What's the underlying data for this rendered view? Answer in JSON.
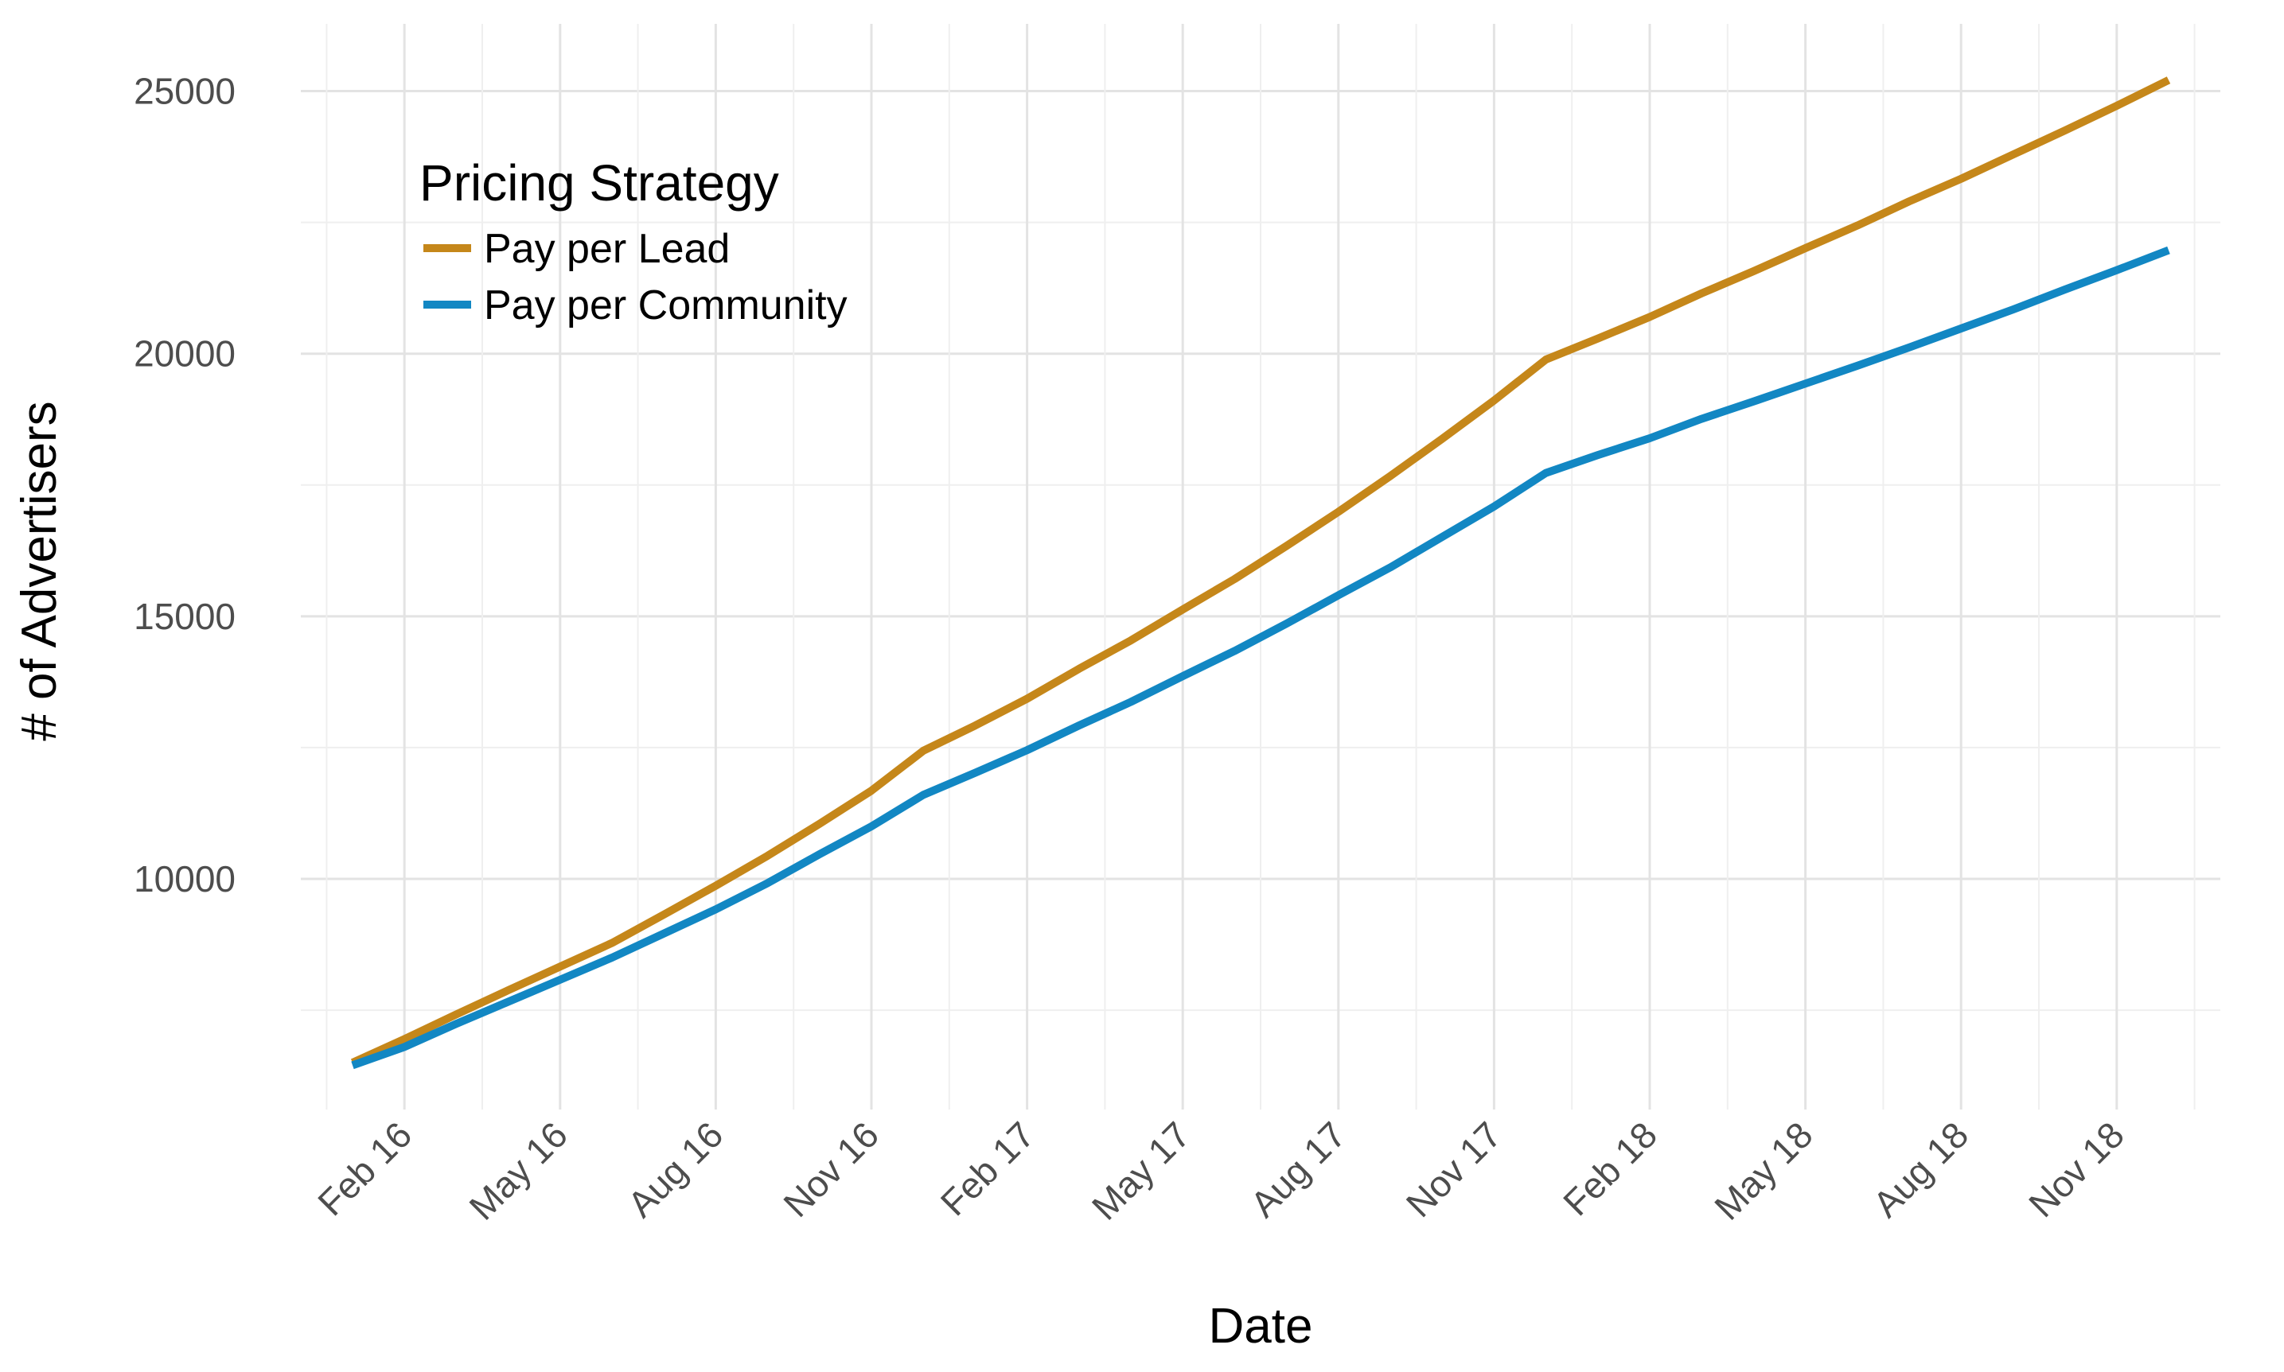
{
  "chart_data": {
    "type": "line",
    "xlabel": "Date",
    "ylabel": "# of Advertisers",
    "ylim": [
      6000,
      26000
    ],
    "y_ticks": [
      10000,
      15000,
      20000,
      25000
    ],
    "y_tick_labels": [
      "10000",
      "15000",
      "20000",
      "25000"
    ],
    "x_tick_labels": [
      "Feb 16",
      "May 16",
      "Aug 16",
      "Nov 16",
      "Feb 17",
      "May 17",
      "Aug 17",
      "Nov 17",
      "Feb 18",
      "May 18",
      "Aug 18",
      "Nov 18"
    ],
    "x": [
      "2016-01",
      "2016-02",
      "2016-03",
      "2016-04",
      "2016-05",
      "2016-06",
      "2016-07",
      "2016-08",
      "2016-09",
      "2016-10",
      "2016-11",
      "2016-12",
      "2017-01",
      "2017-02",
      "2017-03",
      "2017-04",
      "2017-05",
      "2017-06",
      "2017-07",
      "2017-08",
      "2017-09",
      "2017-10",
      "2017-11",
      "2017-12",
      "2018-01",
      "2018-02",
      "2018-03",
      "2018-04",
      "2018-05",
      "2018-06",
      "2018-07",
      "2018-08",
      "2018-09",
      "2018-10",
      "2018-11",
      "2018-12"
    ],
    "grid": true,
    "legend": {
      "title": "Pricing Strategy",
      "position": "top-left"
    },
    "series": [
      {
        "name": "Pay per Lead",
        "color": "#C5871A",
        "values": [
          6500,
          6950,
          7420,
          7880,
          8330,
          8780,
          9320,
          9870,
          10440,
          11050,
          11680,
          12440,
          12920,
          13430,
          14000,
          14540,
          15130,
          15710,
          16340,
          16990,
          17670,
          18380,
          19110,
          19890,
          20290,
          20700,
          21150,
          21570,
          22010,
          22440,
          22900,
          23330,
          23790,
          24250,
          24720,
          25210
        ]
      },
      {
        "name": "Pay per Community",
        "color": "#1287C3",
        "values": [
          6450,
          6800,
          7240,
          7660,
          8080,
          8500,
          8960,
          9420,
          9920,
          10470,
          11000,
          11600,
          12020,
          12450,
          12920,
          13370,
          13860,
          14340,
          14860,
          15400,
          15930,
          16510,
          17090,
          17730,
          18070,
          18390,
          18760,
          19090,
          19430,
          19770,
          20120,
          20480,
          20840,
          21220,
          21590,
          21970
        ]
      }
    ]
  }
}
